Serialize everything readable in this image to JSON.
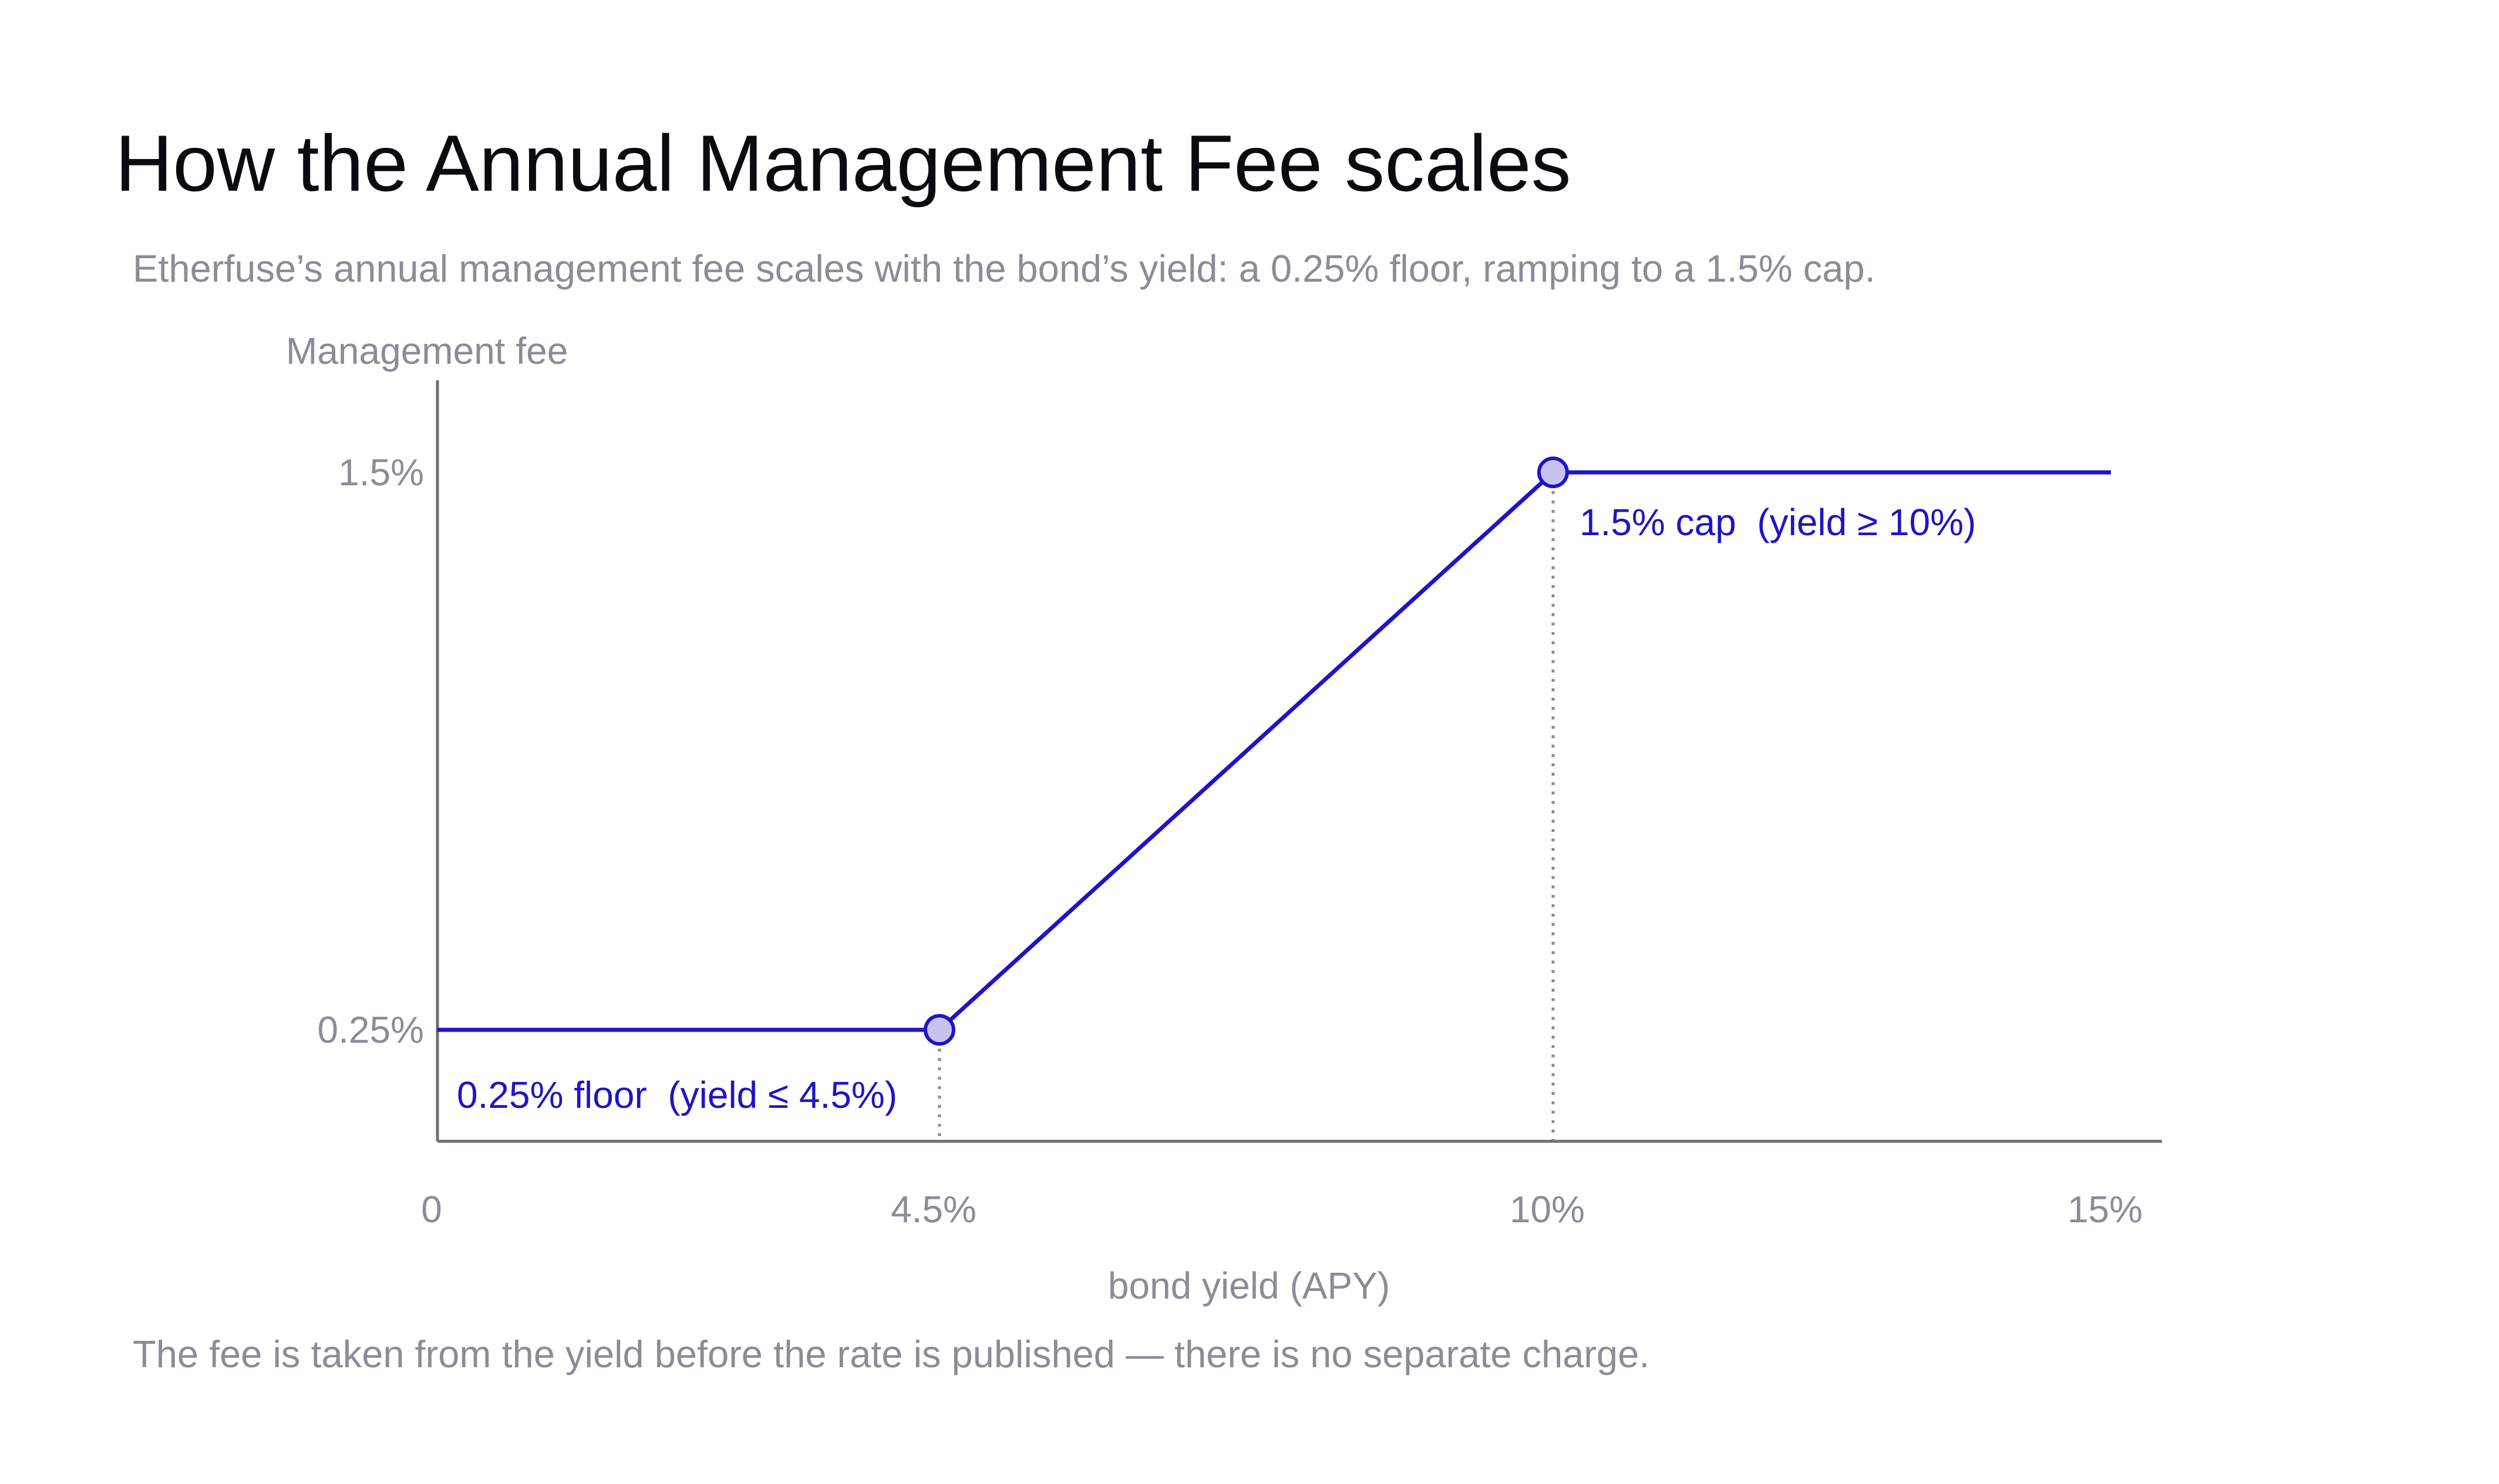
{
  "colors": {
    "line": "#1f14c6",
    "marker_fill": "#c6c4ee",
    "axis": "#6b6f78",
    "text_muted": "#8a8d96",
    "title": "#0b0b0f"
  },
  "chart_data": {
    "type": "line",
    "title": "How the Annual Management Fee scales",
    "subtitle": "Etherfuse’s annual management fee scales with the bond’s yield: a 0.25% floor, ramping to a 1.5% cap.",
    "footnote": "The fee is taken from the yield before the rate is published — there is no separate charge.",
    "xlabel": "bond yield (APY)",
    "ylabel": "Management fee",
    "xlim": [
      0,
      15
    ],
    "ylim": [
      0,
      1.5
    ],
    "x_ticks": [
      {
        "value": 0,
        "label": "0"
      },
      {
        "value": 4.5,
        "label": "4.5%"
      },
      {
        "value": 10,
        "label": "10%"
      },
      {
        "value": 15,
        "label": "15%"
      }
    ],
    "y_ticks": [
      {
        "value": 0.25,
        "label": "0.25%"
      },
      {
        "value": 1.5,
        "label": "1.5%"
      }
    ],
    "grid": false,
    "series": [
      {
        "x": [
          0,
          4.5,
          10,
          15
        ],
        "y": [
          0.25,
          0.25,
          1.5,
          1.5
        ]
      }
    ],
    "markers": [
      {
        "x": 4.5,
        "y": 0.25
      },
      {
        "x": 10,
        "y": 1.5
      }
    ],
    "reference_lines": [
      {
        "x": 4.5,
        "style": "dotted"
      },
      {
        "x": 10,
        "style": "dotted"
      }
    ],
    "annotations": [
      {
        "text": "0.25% floor  (yield ≤ 4.5%)",
        "x": 4.5,
        "y": 0.25
      },
      {
        "text": "1.5% cap  (yield ≥ 10%)",
        "x": 10,
        "y": 1.5
      }
    ]
  }
}
